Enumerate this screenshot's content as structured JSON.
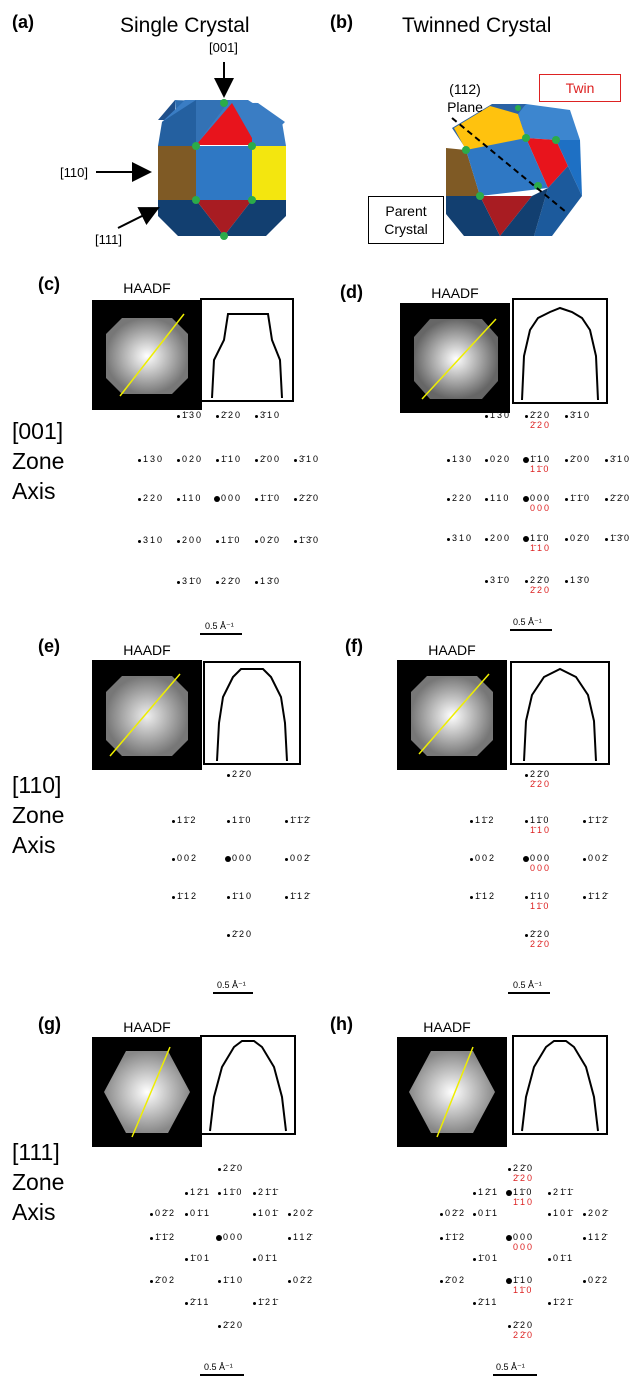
{
  "panels": {
    "a": "(a)",
    "b": "(b)",
    "c": "(c)",
    "d": "(d)",
    "e": "(e)",
    "f": "(f)",
    "g": "(g)",
    "h": "(h)"
  },
  "top": {
    "single_title": "Single Crystal",
    "twin_title": "Twinned Crystal",
    "dir_001": "[001]",
    "dir_110": "[110]",
    "dir_111": "[111]",
    "plane_112": "(112)",
    "plane_word": "Plane",
    "twin_label": "Twin",
    "parent_line1": "Parent",
    "parent_line2": "Crystal"
  },
  "haadf": "HAADF",
  "zones": {
    "z001": [
      "[001]",
      "Zone",
      "Axis"
    ],
    "z110": [
      "[110]",
      "Zone",
      "Axis"
    ],
    "z111": [
      "[111]",
      "Zone",
      "Axis"
    ]
  },
  "scale_bar": "0.5 Å⁻¹",
  "patterns": {
    "c": [
      "1̄30",
      "2̄20",
      "3̄10",
      "130",
      "020",
      "1̄10",
      "2̄00",
      "3̄10",
      "220",
      "110",
      "000",
      "1̄1̄0",
      "2̄2̄0",
      "310",
      "200",
      "11̄0",
      "02̄0",
      "1̄3̄0",
      "31̄0",
      "22̄0",
      "13̄0"
    ],
    "d": [
      "1̄30",
      "2̄20",
      "3̄10",
      "130",
      "020",
      "1̄10",
      "2̄00",
      "3̄10",
      "220",
      "110",
      "000",
      "1̄1̄0",
      "2̄2̄0",
      "310",
      "200",
      "11̄0",
      "02̄0",
      "1̄3̄0",
      "31̄0",
      "22̄0",
      "13̄0"
    ],
    "d_red": [
      "2̄20",
      "11̄0",
      "000",
      "1̄10",
      "2̄20"
    ],
    "e": [
      "22̄0",
      "11̄2",
      "11̄0",
      "1̄1̄2̄",
      "002",
      "000",
      "002̄",
      "1̄12",
      "1̄10",
      "1̄12̄",
      "2̄20"
    ],
    "f": [
      "22̄0",
      "11̄2",
      "11̄0",
      "1̄1̄2̄",
      "002",
      "000",
      "002̄",
      "1̄12",
      "1̄10",
      "1̄12̄",
      "2̄20"
    ],
    "f_red": [
      "2̄20",
      "1̄10",
      "000",
      "11̄0",
      "22̄0"
    ],
    "g": [
      "22̄0",
      "12̄1",
      "11̄0",
      "21̄1̄",
      "02̄2",
      "01̄1",
      "101̄",
      "202̄",
      "1̄1̄2",
      "000",
      "112̄",
      "1̄01",
      "01̄1",
      "2̄02",
      "1̄10",
      "02̄2",
      "2̄11",
      "1̄21̄",
      "2̄20"
    ],
    "h": [
      "22̄0",
      "12̄1",
      "11̄0",
      "21̄1̄",
      "02̄2",
      "01̄1",
      "101̄",
      "202̄",
      "1̄1̄2",
      "000",
      "112̄",
      "1̄01",
      "01̄1",
      "2̄02",
      "1̄10",
      "02̄2",
      "2̄11",
      "1̄21̄",
      "2̄20"
    ],
    "h_red": [
      "2̄20",
      "1̄10",
      "000",
      "11̄0",
      "22̄0"
    ]
  }
}
